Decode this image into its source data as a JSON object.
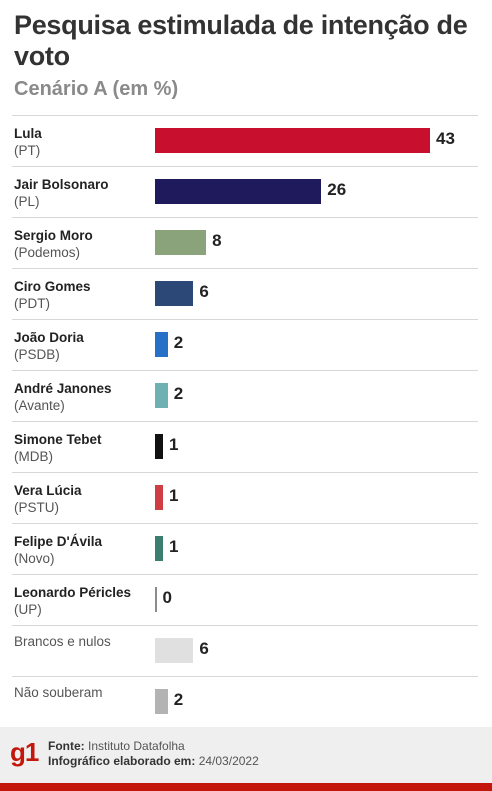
{
  "header": {
    "title": "Pesquisa estimulada de intenção de voto",
    "subtitle": "Cenário A (em %)"
  },
  "chart_data": {
    "type": "bar",
    "orientation": "horizontal",
    "title": "Pesquisa estimulada de intenção de voto",
    "subtitle": "Cenário A (em %)",
    "categories": [
      "Lula",
      "Jair Bolsonaro",
      "Sergio Moro",
      "Ciro Gomes",
      "João Doria",
      "André Janones",
      "Simone Tebet",
      "Vera Lúcia",
      "Felipe D'Ávila",
      "Leonardo Péricles",
      "Brancos e nulos",
      "Não souberam"
    ],
    "parties": [
      "(PT)",
      "(PL)",
      "(Podemos)",
      "(PDT)",
      "(PSDB)",
      "(Avante)",
      "(MDB)",
      "(PSTU)",
      "(Novo)",
      "(UP)",
      "",
      ""
    ],
    "values": [
      43,
      26,
      8,
      6,
      2,
      2,
      1,
      1,
      1,
      0,
      6,
      2
    ],
    "colors": [
      "#c8102e",
      "#1f1a5c",
      "#8aa37b",
      "#2b4877",
      "#2670c7",
      "#6fb1b3",
      "#111111",
      "#d03d42",
      "#3b7d6e",
      "#8c8c8c",
      "#e0e0e0",
      "#b3b3b3"
    ],
    "xlim": [
      0,
      43
    ],
    "grid": false,
    "legend": "none"
  },
  "footer": {
    "logo": "g1",
    "source_label": "Fonte:",
    "source_value": "Instituto Datafolha",
    "date_label": "Infográfico elaborado em:",
    "date_value": "24/03/2022"
  }
}
